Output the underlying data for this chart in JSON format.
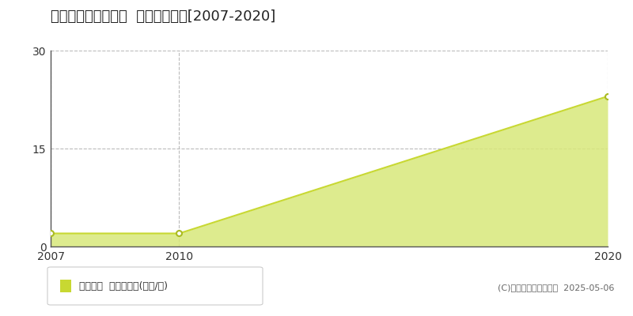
{
  "title": "各務原市那加日新町  土地価格推移[2007-2020]",
  "years": [
    2007,
    2010,
    2020
  ],
  "values": [
    2,
    2,
    23
  ],
  "line_color": "#c8d832",
  "fill_color": "#d8e87a",
  "fill_alpha": 0.85,
  "marker_color": "#ffffff",
  "marker_edge_color": "#aabb22",
  "ylim": [
    0,
    30
  ],
  "yticks": [
    0,
    15,
    30
  ],
  "xticks": [
    2007,
    2010,
    2020
  ],
  "grid_color": "#bbbbbb",
  "bg_color": "#ffffff",
  "plot_bg_color": "#ffffff",
  "legend_label": "土地価格  平均嵪単価(万円/嵪)",
  "copyright": "(C)土地価格ドットコム  2025-05-06",
  "title_fontsize": 13,
  "axis_fontsize": 10,
  "legend_fontsize": 9,
  "copyright_fontsize": 8,
  "spine_color": "#555555"
}
